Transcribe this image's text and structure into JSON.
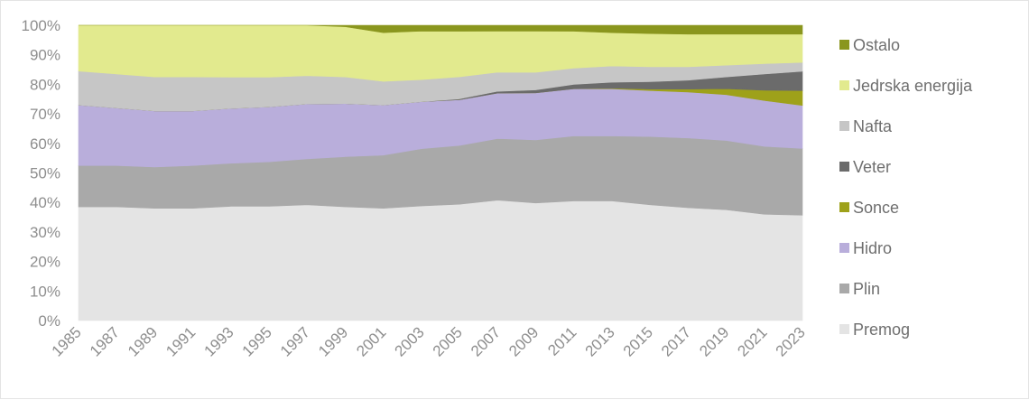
{
  "chart_data": {
    "type": "area",
    "stacked": "percent",
    "title": "",
    "xlabel": "",
    "ylabel": "",
    "ylim": [
      0,
      100
    ],
    "y_ticks": [
      "0%",
      "10%",
      "20%",
      "30%",
      "40%",
      "50%",
      "60%",
      "70%",
      "80%",
      "90%",
      "100%"
    ],
    "x_tick_labels": [
      "1985",
      "1987",
      "1989",
      "1991",
      "1993",
      "1995",
      "1997",
      "1999",
      "2001",
      "2003",
      "2005",
      "2007",
      "2009",
      "2011",
      "2013",
      "2015",
      "2017",
      "2019",
      "2021",
      "2023"
    ],
    "grid": false,
    "legend_position": "right",
    "x": [
      1985,
      1987,
      1989,
      1991,
      1993,
      1995,
      1997,
      1999,
      2001,
      2003,
      2005,
      2007,
      2009,
      2011,
      2013,
      2015,
      2017,
      2019,
      2021,
      2023
    ],
    "series": [
      {
        "name": "Premog",
        "color": "#e4e4e4",
        "values": [
          38.5,
          38.5,
          38.0,
          38.0,
          38.5,
          38.5,
          39.0,
          38.5,
          38.0,
          39.0,
          39.5,
          41.0,
          40.0,
          40.5,
          40.5,
          39.0,
          38.0,
          37.5,
          36.0,
          35.5
        ]
      },
      {
        "name": "Plin",
        "color": "#a9a9a9",
        "values": [
          14.0,
          14.0,
          14.0,
          14.5,
          14.5,
          15.0,
          15.5,
          17.0,
          18.0,
          19.5,
          20.0,
          21.0,
          21.5,
          22.0,
          22.0,
          23.0,
          23.5,
          23.5,
          23.0,
          22.5
        ]
      },
      {
        "name": "Hidro",
        "color": "#b9aedb",
        "values": [
          20.5,
          19.5,
          19.0,
          18.5,
          18.5,
          18.5,
          18.5,
          18.0,
          17.0,
          16.0,
          15.5,
          15.5,
          16.0,
          16.0,
          16.0,
          15.5,
          15.5,
          15.5,
          15.5,
          14.5
        ]
      },
      {
        "name": "Sonce",
        "color": "#9ea11a",
        "values": [
          0,
          0,
          0,
          0,
          0,
          0,
          0,
          0,
          0,
          0,
          0,
          0,
          0,
          0,
          0.2,
          0.5,
          1.0,
          2.0,
          3.5,
          5.0
        ]
      },
      {
        "name": "Veter",
        "color": "#6b6b6b",
        "values": [
          0,
          0,
          0,
          0,
          0,
          0,
          0,
          0,
          0,
          0,
          0.3,
          0.6,
          1.0,
          1.5,
          2.0,
          2.5,
          3.0,
          4.0,
          5.5,
          6.5
        ]
      },
      {
        "name": "Nafta",
        "color": "#c6c6c6",
        "values": [
          11.5,
          11.5,
          11.5,
          11.5,
          10.5,
          10.0,
          9.5,
          9.0,
          8.0,
          7.5,
          7.5,
          6.5,
          6.0,
          5.5,
          5.5,
          5.0,
          4.5,
          4.0,
          3.5,
          3.0
        ]
      },
      {
        "name": "Jedrska energija",
        "color": "#e2ea8e",
        "values": [
          15.5,
          16.5,
          17.5,
          17.5,
          17.5,
          17.5,
          17.0,
          17.0,
          16.5,
          16.5,
          15.5,
          14.0,
          14.0,
          12.5,
          11.3,
          11.2,
          11.0,
          10.5,
          10.0,
          9.5
        ]
      },
      {
        "name": "Ostalo",
        "color": "#8a961e",
        "values": [
          0,
          0,
          0,
          0,
          0,
          0,
          0,
          0.5,
          2.5,
          2.0,
          2.0,
          2.0,
          2.0,
          2.0,
          2.5,
          2.8,
          3.0,
          3.0,
          3.0,
          3.0
        ]
      }
    ]
  }
}
